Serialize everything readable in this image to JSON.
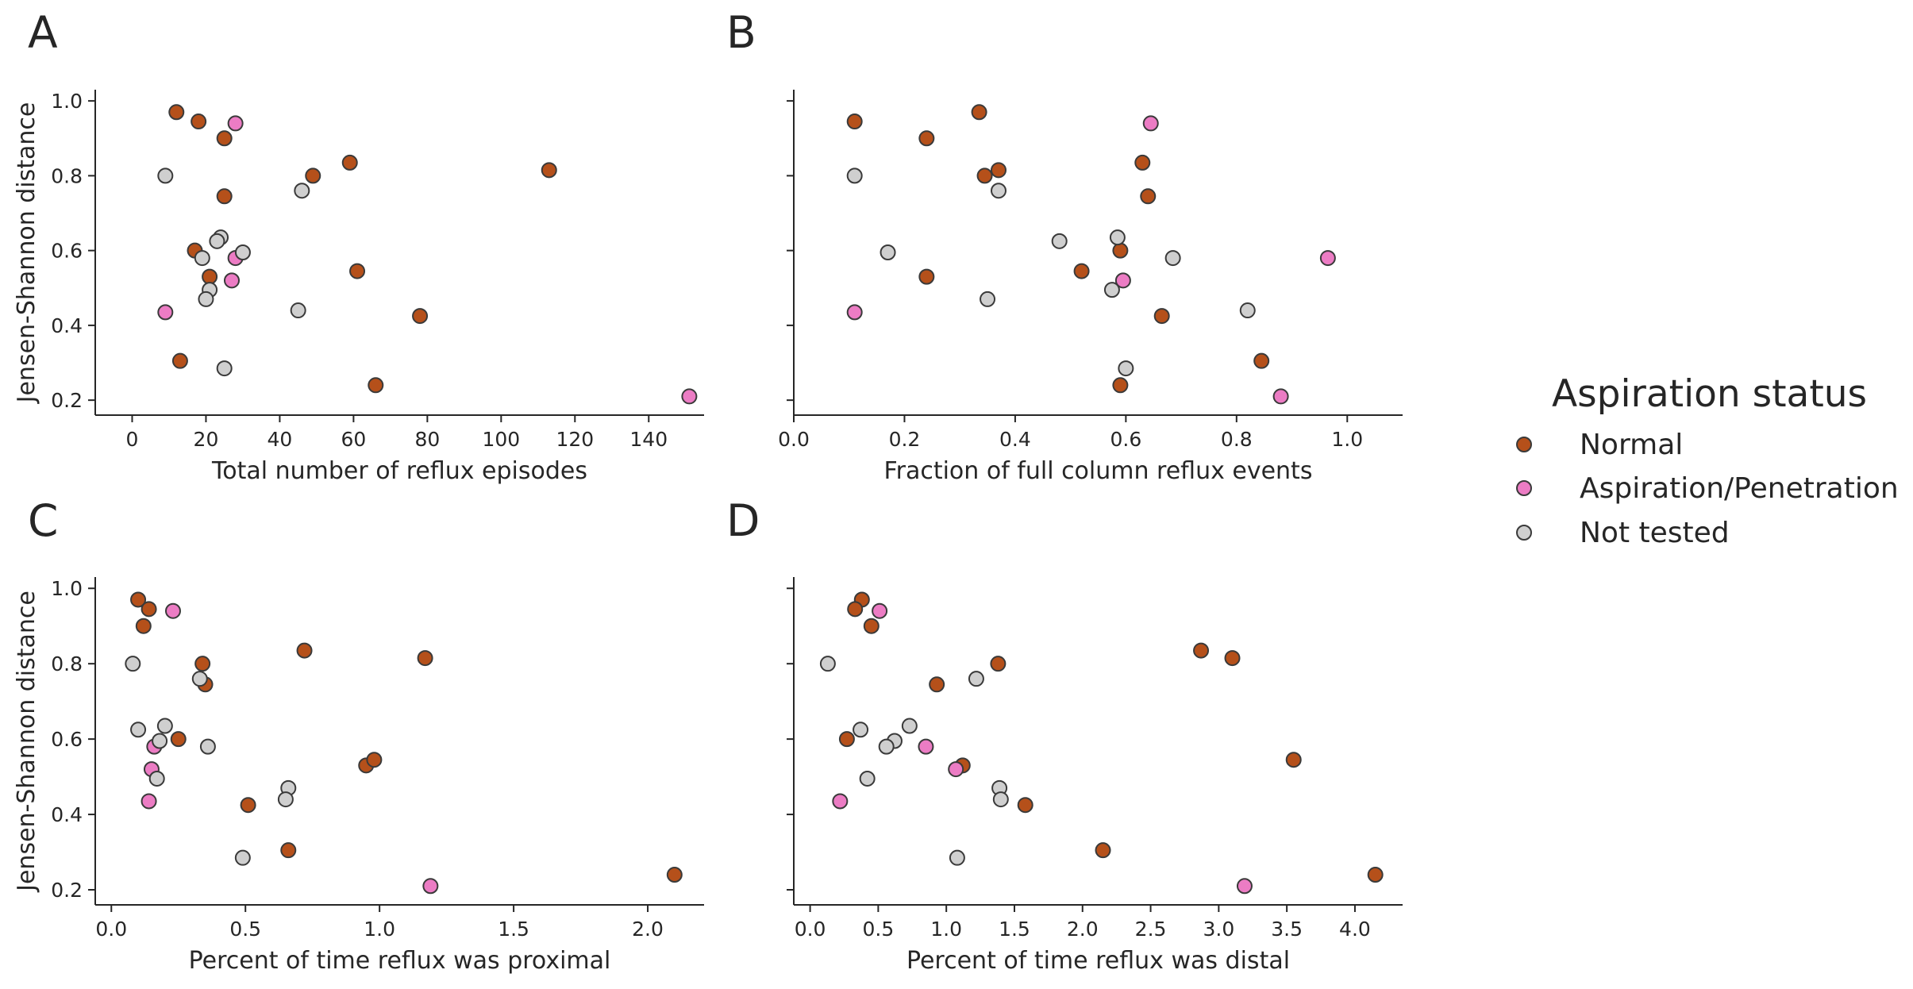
{
  "colors": {
    "Normal": "#b5501a",
    "Aspiration/Penetration": "#ec7cc4",
    "Not tested": "#cfcfcf",
    "edge": "#3a3a3a",
    "axis": "#262626"
  },
  "legend": {
    "title": "Aspiration status",
    "items": [
      {
        "label": "Normal",
        "key": "Normal"
      },
      {
        "label": "Aspiration/Penetration",
        "key": "Aspiration/Penetration"
      },
      {
        "label": "Not tested",
        "key": "Not tested"
      }
    ]
  },
  "chart_data": [
    {
      "panel": "A",
      "type": "scatter",
      "xlabel": "Total number of reflux episodes",
      "ylabel": "Jensen-Shannon distance",
      "xlim": [
        -10,
        155
      ],
      "ylim": [
        0.16,
        1.03
      ],
      "xticks": [
        0,
        20,
        40,
        60,
        80,
        100,
        120,
        140
      ],
      "xtick_labels": [
        "0",
        "20",
        "40",
        "60",
        "80",
        "100",
        "120",
        "140"
      ],
      "yticks": [
        0.2,
        0.4,
        0.6,
        0.8,
        1.0
      ],
      "ytick_labels": [
        "0.2",
        "0.4",
        "0.6",
        "0.8",
        "1.0"
      ],
      "points": [
        {
          "x": 12,
          "y": 0.97,
          "s": "Normal"
        },
        {
          "x": 18,
          "y": 0.945,
          "s": "Normal"
        },
        {
          "x": 25,
          "y": 0.9,
          "s": "Normal"
        },
        {
          "x": 25,
          "y": 0.745,
          "s": "Normal"
        },
        {
          "x": 49,
          "y": 0.8,
          "s": "Normal"
        },
        {
          "x": 59,
          "y": 0.835,
          "s": "Normal"
        },
        {
          "x": 113,
          "y": 0.815,
          "s": "Normal"
        },
        {
          "x": 17,
          "y": 0.6,
          "s": "Normal"
        },
        {
          "x": 21,
          "y": 0.53,
          "s": "Normal"
        },
        {
          "x": 61,
          "y": 0.545,
          "s": "Normal"
        },
        {
          "x": 78,
          "y": 0.425,
          "s": "Normal"
        },
        {
          "x": 13,
          "y": 0.305,
          "s": "Normal"
        },
        {
          "x": 66,
          "y": 0.24,
          "s": "Normal"
        },
        {
          "x": 28,
          "y": 0.94,
          "s": "Aspiration/Penetration"
        },
        {
          "x": 28,
          "y": 0.58,
          "s": "Aspiration/Penetration"
        },
        {
          "x": 27,
          "y": 0.52,
          "s": "Aspiration/Penetration"
        },
        {
          "x": 9,
          "y": 0.435,
          "s": "Aspiration/Penetration"
        },
        {
          "x": 151,
          "y": 0.21,
          "s": "Aspiration/Penetration"
        },
        {
          "x": 9,
          "y": 0.8,
          "s": "Not tested"
        },
        {
          "x": 46,
          "y": 0.76,
          "s": "Not tested"
        },
        {
          "x": 24,
          "y": 0.635,
          "s": "Not tested"
        },
        {
          "x": 23,
          "y": 0.625,
          "s": "Not tested"
        },
        {
          "x": 30,
          "y": 0.595,
          "s": "Not tested"
        },
        {
          "x": 19,
          "y": 0.58,
          "s": "Not tested"
        },
        {
          "x": 21,
          "y": 0.495,
          "s": "Not tested"
        },
        {
          "x": 20,
          "y": 0.47,
          "s": "Not tested"
        },
        {
          "x": 45,
          "y": 0.44,
          "s": "Not tested"
        },
        {
          "x": 25,
          "y": 0.285,
          "s": "Not tested"
        }
      ]
    },
    {
      "panel": "B",
      "type": "scatter",
      "xlabel": "Fraction of full column reflux events",
      "ylabel": "",
      "xlim": [
        0.0,
        1.1
      ],
      "ylim": [
        0.16,
        1.03
      ],
      "xticks": [
        0.0,
        0.2,
        0.4,
        0.6,
        0.8,
        1.0
      ],
      "xtick_labels": [
        "0.0",
        "0.2",
        "0.4",
        "0.6",
        "0.8",
        "1.0"
      ],
      "yticks": [
        0.2,
        0.4,
        0.6,
        0.8,
        1.0
      ],
      "ytick_labels": [],
      "points": [
        {
          "x": 0.11,
          "y": 0.945,
          "s": "Normal"
        },
        {
          "x": 0.24,
          "y": 0.9,
          "s": "Normal"
        },
        {
          "x": 0.335,
          "y": 0.97,
          "s": "Normal"
        },
        {
          "x": 0.345,
          "y": 0.8,
          "s": "Normal"
        },
        {
          "x": 0.37,
          "y": 0.815,
          "s": "Normal"
        },
        {
          "x": 0.63,
          "y": 0.835,
          "s": "Normal"
        },
        {
          "x": 0.64,
          "y": 0.745,
          "s": "Normal"
        },
        {
          "x": 0.24,
          "y": 0.53,
          "s": "Normal"
        },
        {
          "x": 0.52,
          "y": 0.545,
          "s": "Normal"
        },
        {
          "x": 0.59,
          "y": 0.6,
          "s": "Normal"
        },
        {
          "x": 0.665,
          "y": 0.425,
          "s": "Normal"
        },
        {
          "x": 0.845,
          "y": 0.305,
          "s": "Normal"
        },
        {
          "x": 0.59,
          "y": 0.24,
          "s": "Normal"
        },
        {
          "x": 0.645,
          "y": 0.94,
          "s": "Aspiration/Penetration"
        },
        {
          "x": 0.965,
          "y": 0.58,
          "s": "Aspiration/Penetration"
        },
        {
          "x": 0.595,
          "y": 0.52,
          "s": "Aspiration/Penetration"
        },
        {
          "x": 0.11,
          "y": 0.435,
          "s": "Aspiration/Penetration"
        },
        {
          "x": 0.88,
          "y": 0.21,
          "s": "Aspiration/Penetration"
        },
        {
          "x": 0.11,
          "y": 0.8,
          "s": "Not tested"
        },
        {
          "x": 0.37,
          "y": 0.76,
          "s": "Not tested"
        },
        {
          "x": 0.48,
          "y": 0.625,
          "s": "Not tested"
        },
        {
          "x": 0.585,
          "y": 0.635,
          "s": "Not tested"
        },
        {
          "x": 0.17,
          "y": 0.595,
          "s": "Not tested"
        },
        {
          "x": 0.685,
          "y": 0.58,
          "s": "Not tested"
        },
        {
          "x": 0.575,
          "y": 0.495,
          "s": "Not tested"
        },
        {
          "x": 0.35,
          "y": 0.47,
          "s": "Not tested"
        },
        {
          "x": 0.82,
          "y": 0.44,
          "s": "Not tested"
        },
        {
          "x": 0.6,
          "y": 0.285,
          "s": "Not tested"
        }
      ]
    },
    {
      "panel": "C",
      "type": "scatter",
      "xlabel": "Percent of time reflux was proximal",
      "ylabel": "Jensen-Shannon distance",
      "xlim": [
        -0.06,
        2.21
      ],
      "ylim": [
        0.16,
        1.03
      ],
      "xticks": [
        0.0,
        0.5,
        1.0,
        1.5,
        2.0
      ],
      "xtick_labels": [
        "0.0",
        "0.5",
        "1.0",
        "1.5",
        "2.0"
      ],
      "yticks": [
        0.2,
        0.4,
        0.6,
        0.8,
        1.0
      ],
      "ytick_labels": [
        "0.2",
        "0.4",
        "0.6",
        "0.8",
        "1.0"
      ],
      "points": [
        {
          "x": 0.1,
          "y": 0.97,
          "s": "Normal"
        },
        {
          "x": 0.14,
          "y": 0.945,
          "s": "Normal"
        },
        {
          "x": 0.12,
          "y": 0.9,
          "s": "Normal"
        },
        {
          "x": 0.35,
          "y": 0.745,
          "s": "Normal"
        },
        {
          "x": 0.34,
          "y": 0.8,
          "s": "Normal"
        },
        {
          "x": 0.72,
          "y": 0.835,
          "s": "Normal"
        },
        {
          "x": 1.17,
          "y": 0.815,
          "s": "Normal"
        },
        {
          "x": 0.25,
          "y": 0.6,
          "s": "Normal"
        },
        {
          "x": 0.95,
          "y": 0.53,
          "s": "Normal"
        },
        {
          "x": 0.98,
          "y": 0.545,
          "s": "Normal"
        },
        {
          "x": 0.51,
          "y": 0.425,
          "s": "Normal"
        },
        {
          "x": 0.66,
          "y": 0.305,
          "s": "Normal"
        },
        {
          "x": 2.1,
          "y": 0.24,
          "s": "Normal"
        },
        {
          "x": 0.23,
          "y": 0.94,
          "s": "Aspiration/Penetration"
        },
        {
          "x": 0.16,
          "y": 0.58,
          "s": "Aspiration/Penetration"
        },
        {
          "x": 0.15,
          "y": 0.52,
          "s": "Aspiration/Penetration"
        },
        {
          "x": 0.14,
          "y": 0.435,
          "s": "Aspiration/Penetration"
        },
        {
          "x": 1.19,
          "y": 0.21,
          "s": "Aspiration/Penetration"
        },
        {
          "x": 0.08,
          "y": 0.8,
          "s": "Not tested"
        },
        {
          "x": 0.33,
          "y": 0.76,
          "s": "Not tested"
        },
        {
          "x": 0.1,
          "y": 0.625,
          "s": "Not tested"
        },
        {
          "x": 0.2,
          "y": 0.635,
          "s": "Not tested"
        },
        {
          "x": 0.18,
          "y": 0.595,
          "s": "Not tested"
        },
        {
          "x": 0.36,
          "y": 0.58,
          "s": "Not tested"
        },
        {
          "x": 0.17,
          "y": 0.495,
          "s": "Not tested"
        },
        {
          "x": 0.66,
          "y": 0.47,
          "s": "Not tested"
        },
        {
          "x": 0.65,
          "y": 0.44,
          "s": "Not tested"
        },
        {
          "x": 0.49,
          "y": 0.285,
          "s": "Not tested"
        }
      ]
    },
    {
      "panel": "D",
      "type": "scatter",
      "xlabel": "Percent of time reflux was distal",
      "ylabel": "",
      "xlim": [
        -0.12,
        4.35
      ],
      "ylim": [
        0.16,
        1.03
      ],
      "xticks": [
        0.0,
        0.5,
        1.0,
        1.5,
        2.0,
        2.5,
        3.0,
        3.5,
        4.0
      ],
      "xtick_labels": [
        "0.0",
        "0.5",
        "1.0",
        "1.5",
        "2.0",
        "2.5",
        "3.0",
        "3.5",
        "4.0"
      ],
      "yticks": [
        0.2,
        0.4,
        0.6,
        0.8,
        1.0
      ],
      "ytick_labels": [],
      "points": [
        {
          "x": 0.38,
          "y": 0.97,
          "s": "Normal"
        },
        {
          "x": 0.33,
          "y": 0.945,
          "s": "Normal"
        },
        {
          "x": 0.45,
          "y": 0.9,
          "s": "Normal"
        },
        {
          "x": 0.93,
          "y": 0.745,
          "s": "Normal"
        },
        {
          "x": 1.38,
          "y": 0.8,
          "s": "Normal"
        },
        {
          "x": 2.87,
          "y": 0.835,
          "s": "Normal"
        },
        {
          "x": 3.1,
          "y": 0.815,
          "s": "Normal"
        },
        {
          "x": 0.27,
          "y": 0.6,
          "s": "Normal"
        },
        {
          "x": 1.12,
          "y": 0.53,
          "s": "Normal"
        },
        {
          "x": 3.55,
          "y": 0.545,
          "s": "Normal"
        },
        {
          "x": 1.58,
          "y": 0.425,
          "s": "Normal"
        },
        {
          "x": 2.15,
          "y": 0.305,
          "s": "Normal"
        },
        {
          "x": 4.15,
          "y": 0.24,
          "s": "Normal"
        },
        {
          "x": 0.51,
          "y": 0.94,
          "s": "Aspiration/Penetration"
        },
        {
          "x": 0.85,
          "y": 0.58,
          "s": "Aspiration/Penetration"
        },
        {
          "x": 1.07,
          "y": 0.52,
          "s": "Aspiration/Penetration"
        },
        {
          "x": 0.22,
          "y": 0.435,
          "s": "Aspiration/Penetration"
        },
        {
          "x": 3.19,
          "y": 0.21,
          "s": "Aspiration/Penetration"
        },
        {
          "x": 0.13,
          "y": 0.8,
          "s": "Not tested"
        },
        {
          "x": 1.22,
          "y": 0.76,
          "s": "Not tested"
        },
        {
          "x": 0.37,
          "y": 0.625,
          "s": "Not tested"
        },
        {
          "x": 0.73,
          "y": 0.635,
          "s": "Not tested"
        },
        {
          "x": 0.62,
          "y": 0.595,
          "s": "Not tested"
        },
        {
          "x": 0.56,
          "y": 0.58,
          "s": "Not tested"
        },
        {
          "x": 0.42,
          "y": 0.495,
          "s": "Not tested"
        },
        {
          "x": 1.39,
          "y": 0.47,
          "s": "Not tested"
        },
        {
          "x": 1.4,
          "y": 0.44,
          "s": "Not tested"
        },
        {
          "x": 1.08,
          "y": 0.285,
          "s": "Not tested"
        }
      ]
    }
  ]
}
